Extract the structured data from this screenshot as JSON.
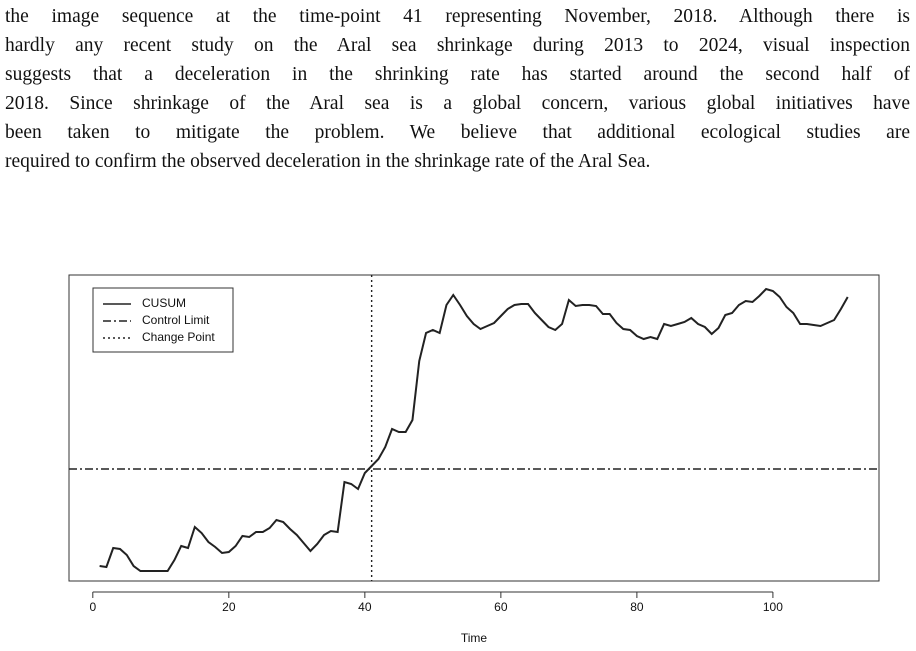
{
  "paragraph": {
    "lines": [
      "the image sequence at the time-point 41 representing November, 2018. Although there is",
      "hardly any recent study on the Aral sea shrinkage during 2013 to 2024, visual inspection",
      "suggests that a deceleration in the shrinking rate has started around the second half of",
      "2018. Since shrinkage of the Aral sea is a global concern, various global initiatives have",
      "been taken to mitigate the problem. We believe that additional ecological studies are",
      "required to confirm the observed deceleration in the shrinkage rate of the Aral Sea."
    ]
  },
  "chart_data": {
    "type": "line",
    "x_label": "Time",
    "x": [
      1,
      2,
      3,
      4,
      5,
      6,
      7,
      8,
      9,
      10,
      11,
      12,
      13,
      14,
      15,
      16,
      17,
      18,
      19,
      20,
      21,
      22,
      23,
      24,
      25,
      26,
      27,
      28,
      29,
      30,
      31,
      32,
      33,
      34,
      35,
      36,
      37,
      38,
      39,
      40,
      41,
      42,
      43,
      44,
      45,
      46,
      47,
      48,
      49,
      50,
      51,
      52,
      53,
      54,
      55,
      56,
      57,
      58,
      59,
      60,
      61,
      62,
      63,
      64,
      65,
      66,
      67,
      68,
      69,
      70,
      71,
      72,
      73,
      74,
      75,
      76,
      77,
      78,
      79,
      80,
      81,
      82,
      83,
      84,
      85,
      86,
      87,
      88,
      89,
      90,
      91,
      92,
      93,
      94,
      95,
      96,
      97,
      98,
      99,
      100,
      101,
      102,
      103,
      104,
      105,
      106,
      107,
      108,
      109,
      110,
      111
    ],
    "series": [
      {
        "name": "CUSUM",
        "color": "#222222",
        "values": [
          15,
          14,
          33,
          32,
          26,
          15,
          10,
          10,
          10,
          10,
          10,
          21,
          35,
          33,
          54,
          48,
          39,
          34,
          28,
          29,
          35,
          45,
          44,
          49,
          49,
          53,
          61,
          59,
          52,
          46,
          38,
          30,
          37,
          46,
          50,
          49,
          99,
          97,
          92,
          108,
          115,
          122,
          134,
          152,
          149,
          149,
          161,
          220,
          248,
          251,
          248,
          276,
          286,
          276,
          265,
          257,
          252,
          255,
          258,
          265,
          272,
          276,
          277,
          277,
          268,
          261,
          254,
          251,
          257,
          281,
          275,
          276,
          276,
          275,
          267,
          267,
          258,
          252,
          251,
          245,
          242,
          244,
          242,
          257,
          255,
          257,
          259,
          263,
          257,
          254,
          247,
          253,
          266,
          268,
          276,
          280,
          279,
          285,
          292,
          290,
          284,
          274,
          268,
          257,
          257,
          256,
          255,
          258,
          261,
          272,
          284
        ]
      }
    ],
    "hlines": [
      {
        "name": "Control Limit",
        "value": 112
      }
    ],
    "vlines": [
      {
        "name": "Change Point",
        "value": 41
      }
    ],
    "xlim": [
      -3.5,
      115.6
    ],
    "ylim": [
      0,
      306
    ],
    "xticks": [
      0,
      20,
      40,
      60,
      80,
      100
    ]
  }
}
